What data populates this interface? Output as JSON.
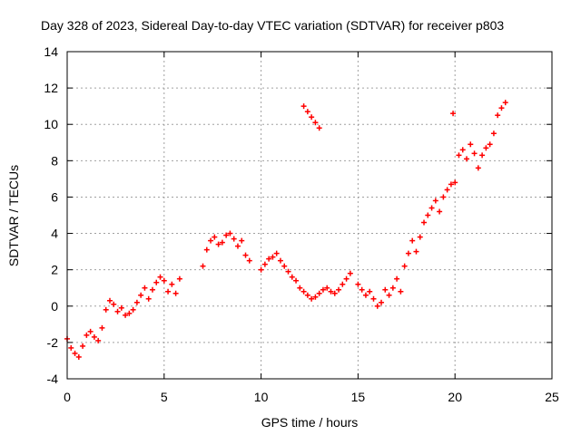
{
  "chart_data": {
    "type": "scatter",
    "title": "Day 328 of 2023, Sidereal Day-to-day VTEC variation (SDTVAR) for receiver p803",
    "xlabel": "GPS time / hours",
    "ylabel": "SDTVAR / TECUs",
    "xlim": [
      0,
      25
    ],
    "ylim": [
      -4,
      14
    ],
    "xticks": [
      0,
      5,
      10,
      15,
      20,
      25
    ],
    "yticks": [
      -4,
      -2,
      0,
      2,
      4,
      6,
      8,
      10,
      12,
      14
    ],
    "x_tick_labels": [
      "0",
      "5",
      "10",
      "15",
      "20",
      "25"
    ],
    "y_tick_labels": [
      "-4",
      "-2",
      "0",
      "2",
      "4",
      "6",
      "8",
      "10",
      "12",
      "14"
    ],
    "grid": true,
    "marker": "+",
    "color": "#ff0000",
    "series": [
      {
        "name": "SDTVAR",
        "x": [
          0.0,
          0.2,
          0.4,
          0.6,
          0.8,
          1.0,
          1.2,
          1.4,
          1.6,
          1.8,
          2.0,
          2.2,
          2.4,
          2.6,
          2.8,
          3.0,
          3.2,
          3.4,
          3.6,
          3.8,
          4.0,
          4.2,
          4.4,
          4.6,
          4.8,
          5.0,
          5.2,
          5.4,
          5.6,
          5.8,
          7.0,
          7.2,
          7.4,
          7.6,
          7.8,
          8.0,
          8.2,
          8.4,
          8.6,
          8.8,
          9.0,
          9.2,
          9.4,
          10.0,
          10.2,
          10.4,
          10.6,
          10.8,
          11.0,
          11.2,
          11.4,
          11.6,
          11.8,
          12.0,
          12.2,
          12.4,
          12.6,
          12.8,
          13.0,
          13.2,
          13.4,
          13.6,
          13.8,
          14.0,
          14.2,
          14.4,
          14.6,
          15.0,
          15.2,
          15.4,
          15.6,
          15.8,
          16.0,
          16.2,
          16.4,
          16.6,
          16.8,
          17.0,
          17.2,
          17.4,
          17.6,
          17.8,
          18.0,
          18.2,
          18.4,
          18.6,
          18.8,
          19.0,
          19.2,
          19.4,
          19.6,
          19.8,
          20.0,
          20.2,
          20.4,
          20.6,
          20.8,
          21.0,
          21.2,
          21.4,
          21.6,
          21.8,
          22.0,
          22.2,
          22.4,
          22.6,
          12.2,
          12.4,
          12.6,
          12.8,
          13.0,
          19.9
        ],
        "y": [
          -1.8,
          -2.3,
          -2.6,
          -2.8,
          -2.2,
          -1.6,
          -1.4,
          -1.7,
          -1.9,
          -1.2,
          -0.2,
          0.3,
          0.1,
          -0.3,
          -0.1,
          -0.5,
          -0.4,
          -0.2,
          0.2,
          0.6,
          1.0,
          0.4,
          0.9,
          1.3,
          1.6,
          1.4,
          0.8,
          1.2,
          0.7,
          1.5,
          2.2,
          3.1,
          3.6,
          3.8,
          3.4,
          3.5,
          3.9,
          4.0,
          3.7,
          3.3,
          3.6,
          2.8,
          2.5,
          2.0,
          2.3,
          2.6,
          2.7,
          2.9,
          2.5,
          2.2,
          1.9,
          1.6,
          1.4,
          1.0,
          0.8,
          0.6,
          0.4,
          0.5,
          0.7,
          0.9,
          1.0,
          0.8,
          0.7,
          0.9,
          1.2,
          1.5,
          1.8,
          1.2,
          0.9,
          0.6,
          0.8,
          0.4,
          0.0,
          0.2,
          0.9,
          0.6,
          1.0,
          1.5,
          0.8,
          2.2,
          2.9,
          3.6,
          3.0,
          3.8,
          4.6,
          5.0,
          5.4,
          5.8,
          5.2,
          6.0,
          6.4,
          6.7,
          6.8,
          8.3,
          8.6,
          8.1,
          8.9,
          8.4,
          7.6,
          8.3,
          8.7,
          8.9,
          9.5,
          10.5,
          10.9,
          11.2,
          11.0,
          10.7,
          10.4,
          10.1,
          9.8,
          10.6
        ]
      }
    ]
  }
}
